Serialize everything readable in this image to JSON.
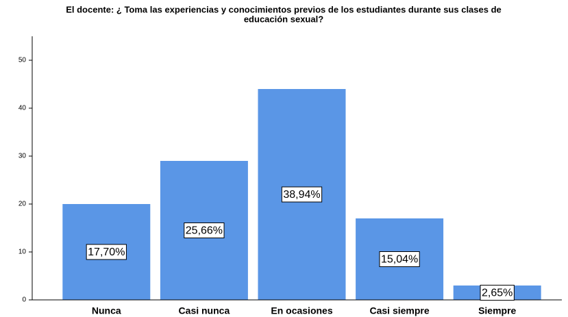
{
  "chart_data": {
    "type": "bar",
    "title_lines": [
      "El docente: ¿ Toma las  experiencias y conocimientos previos de los estudiantes durante sus clases de",
      "educación sexual?"
    ],
    "categories": [
      "Nunca",
      "Casi nunca",
      "En ocasiones",
      "Casi siempre",
      "Siempre"
    ],
    "values": [
      20,
      29,
      44,
      17,
      3
    ],
    "data_labels": [
      "17,70%",
      "25,66%",
      "38,94%",
      "15,04%",
      "2,65%"
    ],
    "color": "#5a96e6",
    "ylim": [
      0,
      55
    ],
    "yticks": [
      0,
      10,
      20,
      30,
      40,
      50
    ],
    "grid": false
  }
}
